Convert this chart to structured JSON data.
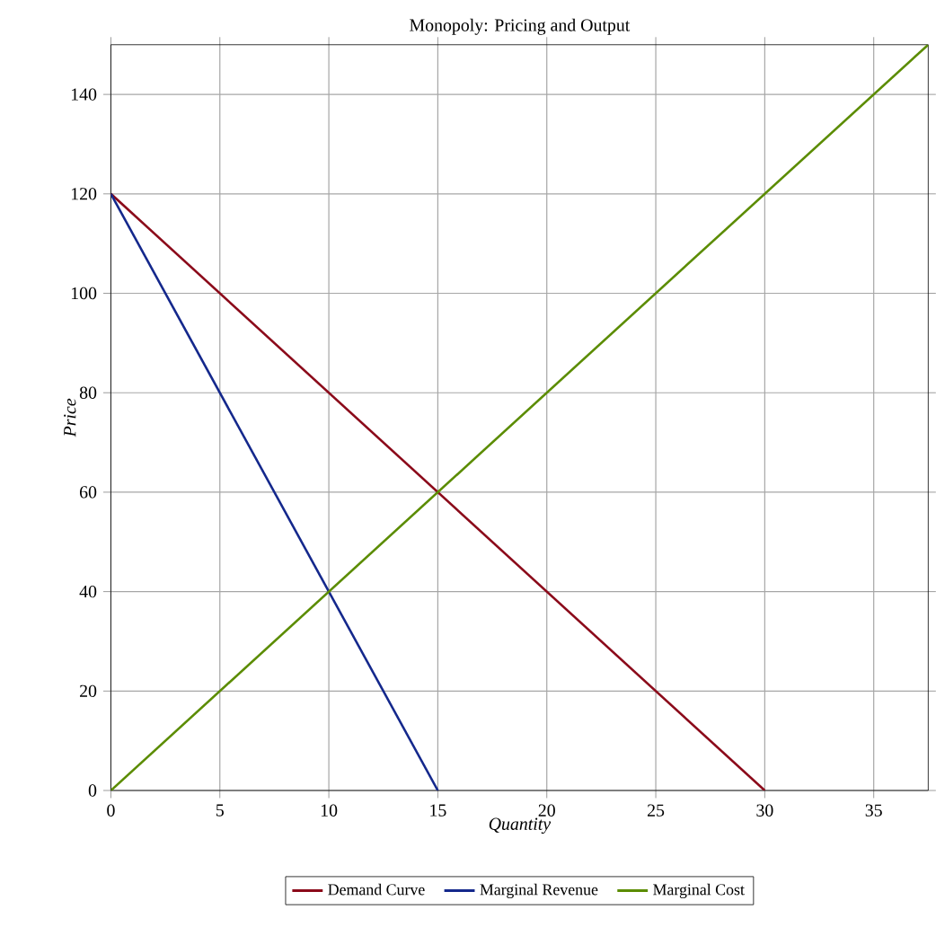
{
  "chart_data": {
    "type": "line",
    "title": "Monopoly: Pricing and Output",
    "xlabel": "Quantity",
    "ylabel": "Price",
    "series": [
      {
        "name": "Demand Curve",
        "color": "#8b0a1a",
        "x": [
          0,
          30
        ],
        "values": [
          120,
          0
        ]
      },
      {
        "name": "Marginal Revenue",
        "color": "#14288c",
        "x": [
          0,
          15
        ],
        "values": [
          120,
          0
        ]
      },
      {
        "name": "Marginal Cost",
        "color": "#5b8c00",
        "x": [
          0,
          37.5
        ],
        "values": [
          0,
          150
        ]
      }
    ],
    "xlim": [
      0,
      37.5
    ],
    "ylim": [
      0,
      150
    ],
    "xticks": [
      0,
      5,
      10,
      15,
      20,
      25,
      30,
      35
    ],
    "yticks": [
      0,
      20,
      40,
      60,
      80,
      100,
      120,
      140
    ],
    "grid": true,
    "legend": "bottom",
    "marker": "none",
    "line_style": "solid"
  }
}
